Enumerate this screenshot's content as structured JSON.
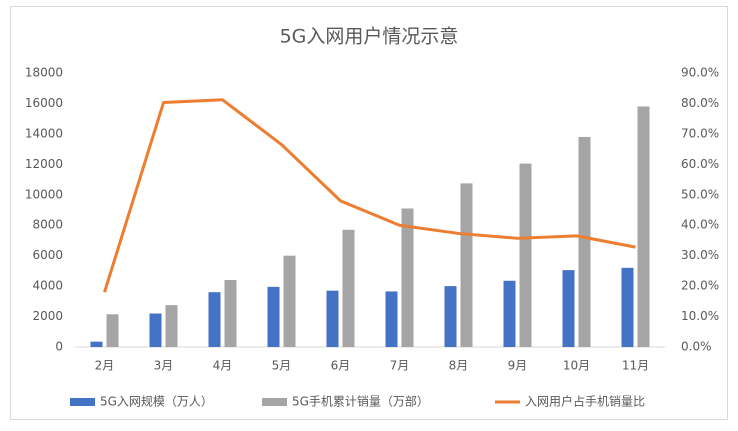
{
  "chart_data": {
    "type": "bar",
    "title": "5G入网用户情况示意",
    "categories": [
      "2月",
      "3月",
      "4月",
      "5月",
      "6月",
      "7月",
      "8月",
      "9月",
      "10月",
      "11月"
    ],
    "series": [
      {
        "name": "5G入网规模（万人）",
        "color": "#4472c4",
        "values": [
          350,
          2200,
          3600,
          3950,
          3700,
          3650,
          4000,
          4350,
          5050,
          5200
        ]
      },
      {
        "name": "5G手机累计销量（万部）",
        "color": "#a5a5a5",
        "values": [
          2150,
          2750,
          4400,
          6000,
          7700,
          9100,
          10750,
          12050,
          13800,
          15800
        ]
      },
      {
        "name": "入网用户占手机销量比",
        "color": "#ed7d31",
        "type": "line",
        "axis": "y2",
        "values": [
          18,
          80.3,
          81.2,
          66.5,
          48,
          40,
          37.3,
          35.7,
          36.5,
          32.8
        ]
      }
    ],
    "ylim": [
      0,
      18000
    ],
    "yticks": [
      0,
      2000,
      4000,
      6000,
      8000,
      10000,
      12000,
      14000,
      16000,
      18000
    ],
    "y2lim": [
      0,
      90
    ],
    "y2ticks": [
      {
        "value": 0,
        "label": "0.0%"
      },
      {
        "value": 10,
        "label": "10.0%"
      },
      {
        "value": 20,
        "label": "20.0%"
      },
      {
        "value": 30,
        "label": "30.0%"
      },
      {
        "value": 40,
        "label": "40.0%"
      },
      {
        "value": 50,
        "label": "50.0%"
      },
      {
        "value": 60,
        "label": "60.0%"
      },
      {
        "value": 70,
        "label": "70.0%"
      },
      {
        "value": 80,
        "label": "80.0%"
      },
      {
        "value": 90,
        "label": "90.0%"
      }
    ]
  }
}
